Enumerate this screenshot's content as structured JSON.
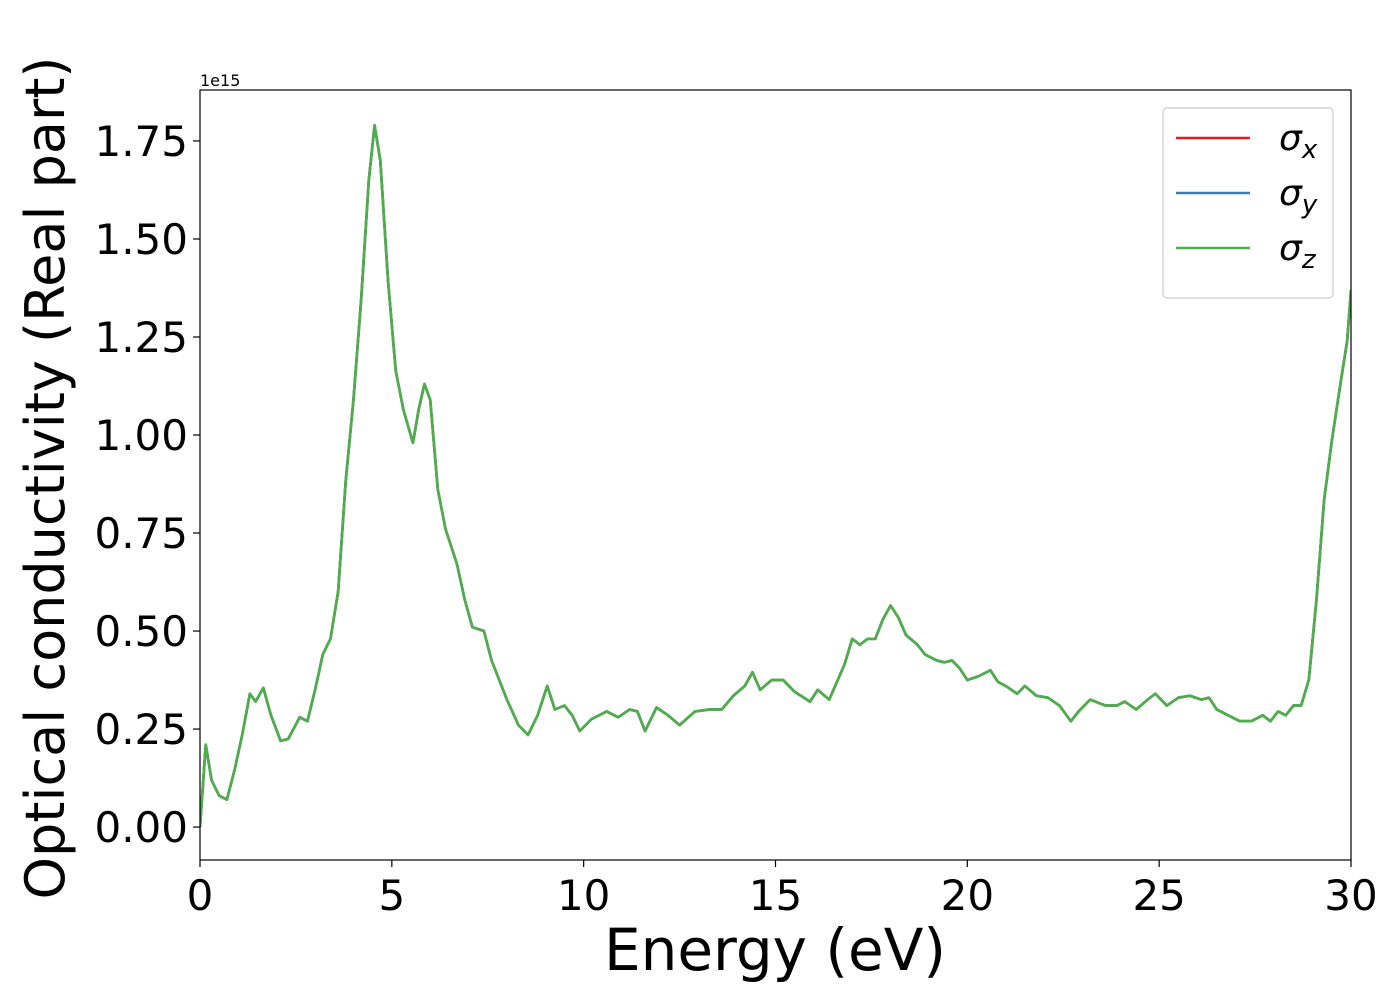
{
  "chart_data": {
    "type": "line",
    "xlabel": "Energy (eV)",
    "ylabel": "Optical conductivity (Real part)",
    "offset_label": "1e15",
    "xlim": [
      0,
      30
    ],
    "xticks": [
      0,
      5,
      10,
      15,
      20,
      25,
      30
    ],
    "ylim": [
      -0.084,
      1.88
    ],
    "yticks": [
      {
        "value": 0,
        "label": "0.00"
      },
      {
        "value": 0.25,
        "label": "0.25"
      },
      {
        "value": 0.5,
        "label": "0.50"
      },
      {
        "value": 0.75,
        "label": "0.75"
      },
      {
        "value": 1,
        "label": "1.00"
      },
      {
        "value": 1.25,
        "label": "1.25"
      },
      {
        "value": 1.5,
        "label": "1.50"
      },
      {
        "value": 1.75,
        "label": "1.75"
      }
    ],
    "legend": "upper right",
    "grid": false,
    "x": [
      0,
      0.15,
      0.3,
      0.5,
      0.7,
      0.9,
      1.1,
      1.3,
      1.45,
      1.65,
      1.85,
      2.1,
      2.3,
      2.6,
      2.8,
      3.0,
      3.2,
      3.4,
      3.6,
      3.8,
      4.0,
      4.2,
      4.4,
      4.55,
      4.7,
      4.9,
      5.1,
      5.3,
      5.55,
      5.7,
      5.85,
      6.0,
      6.2,
      6.4,
      6.7,
      6.9,
      7.1,
      7.4,
      7.6,
      7.8,
      8.0,
      8.3,
      8.55,
      8.8,
      9.05,
      9.25,
      9.5,
      9.7,
      9.9,
      10.2,
      10.6,
      10.9,
      11.2,
      11.4,
      11.6,
      11.9,
      12.2,
      12.5,
      12.9,
      13.3,
      13.6,
      13.9,
      14.2,
      14.4,
      14.6,
      14.9,
      15.2,
      15.5,
      15.9,
      16.1,
      16.4,
      16.6,
      16.8,
      17.0,
      17.2,
      17.4,
      17.6,
      17.8,
      18.0,
      18.2,
      18.4,
      18.7,
      18.9,
      19.2,
      19.4,
      19.6,
      19.8,
      20.0,
      20.3,
      20.6,
      20.8,
      21.0,
      21.3,
      21.5,
      21.8,
      22.1,
      22.4,
      22.7,
      22.9,
      23.2,
      23.6,
      23.9,
      24.1,
      24.4,
      24.7,
      24.9,
      25.2,
      25.5,
      25.8,
      26.1,
      26.3,
      26.5,
      26.8,
      27.1,
      27.4,
      27.7,
      27.9,
      28.1,
      28.3,
      28.5,
      28.7,
      28.9,
      29.1,
      29.3,
      29.5,
      29.7,
      29.9,
      30.0
    ],
    "series": [
      {
        "name": "σx",
        "color": "#e41a1c",
        "values": [
          0,
          0.21,
          0.12,
          0.08,
          0.07,
          0.145,
          0.235,
          0.34,
          0.32,
          0.355,
          0.285,
          0.22,
          0.225,
          0.28,
          0.27,
          0.35,
          0.44,
          0.48,
          0.6,
          0.885,
          1.09,
          1.345,
          1.65,
          1.79,
          1.7,
          1.395,
          1.165,
          1.065,
          0.98,
          1.065,
          1.13,
          1.09,
          0.86,
          0.76,
          0.67,
          0.58,
          0.51,
          0.5,
          0.425,
          0.375,
          0.325,
          0.26,
          0.235,
          0.285,
          0.36,
          0.3,
          0.31,
          0.285,
          0.245,
          0.275,
          0.295,
          0.28,
          0.3,
          0.295,
          0.245,
          0.305,
          0.285,
          0.26,
          0.295,
          0.3,
          0.3,
          0.335,
          0.36,
          0.395,
          0.35,
          0.375,
          0.375,
          0.345,
          0.32,
          0.35,
          0.325,
          0.37,
          0.415,
          0.48,
          0.465,
          0.48,
          0.48,
          0.53,
          0.565,
          0.535,
          0.49,
          0.465,
          0.44,
          0.425,
          0.42,
          0.425,
          0.405,
          0.375,
          0.385,
          0.4,
          0.37,
          0.36,
          0.34,
          0.36,
          0.335,
          0.33,
          0.31,
          0.27,
          0.295,
          0.325,
          0.31,
          0.31,
          0.32,
          0.3,
          0.325,
          0.34,
          0.31,
          0.33,
          0.335,
          0.325,
          0.33,
          0.3,
          0.285,
          0.27,
          0.27,
          0.285,
          0.27,
          0.295,
          0.285,
          0.31,
          0.31,
          0.375,
          0.58,
          0.835,
          0.985,
          1.115,
          1.24,
          1.37
        ]
      },
      {
        "name": "σy",
        "color": "#377eb8",
        "values": [
          0,
          0.21,
          0.12,
          0.08,
          0.07,
          0.145,
          0.235,
          0.34,
          0.32,
          0.355,
          0.285,
          0.22,
          0.225,
          0.28,
          0.27,
          0.35,
          0.44,
          0.48,
          0.6,
          0.885,
          1.09,
          1.345,
          1.65,
          1.79,
          1.7,
          1.395,
          1.165,
          1.065,
          0.98,
          1.065,
          1.13,
          1.09,
          0.86,
          0.76,
          0.67,
          0.58,
          0.51,
          0.5,
          0.425,
          0.375,
          0.325,
          0.26,
          0.235,
          0.285,
          0.36,
          0.3,
          0.31,
          0.285,
          0.245,
          0.275,
          0.295,
          0.28,
          0.3,
          0.295,
          0.245,
          0.305,
          0.285,
          0.26,
          0.295,
          0.3,
          0.3,
          0.335,
          0.36,
          0.395,
          0.35,
          0.375,
          0.375,
          0.345,
          0.32,
          0.35,
          0.325,
          0.37,
          0.415,
          0.48,
          0.465,
          0.48,
          0.48,
          0.53,
          0.565,
          0.535,
          0.49,
          0.465,
          0.44,
          0.425,
          0.42,
          0.425,
          0.405,
          0.375,
          0.385,
          0.4,
          0.37,
          0.36,
          0.34,
          0.36,
          0.335,
          0.33,
          0.31,
          0.27,
          0.295,
          0.325,
          0.31,
          0.31,
          0.32,
          0.3,
          0.325,
          0.34,
          0.31,
          0.33,
          0.335,
          0.325,
          0.33,
          0.3,
          0.285,
          0.27,
          0.27,
          0.285,
          0.27,
          0.295,
          0.285,
          0.31,
          0.31,
          0.375,
          0.58,
          0.835,
          0.985,
          1.115,
          1.24,
          1.37
        ]
      },
      {
        "name": "σz",
        "color": "#4daf4a",
        "values": [
          0,
          0.21,
          0.12,
          0.08,
          0.07,
          0.145,
          0.235,
          0.34,
          0.32,
          0.355,
          0.285,
          0.22,
          0.225,
          0.28,
          0.27,
          0.35,
          0.44,
          0.48,
          0.6,
          0.885,
          1.09,
          1.345,
          1.65,
          1.79,
          1.7,
          1.395,
          1.165,
          1.065,
          0.98,
          1.065,
          1.13,
          1.09,
          0.86,
          0.76,
          0.67,
          0.58,
          0.51,
          0.5,
          0.425,
          0.375,
          0.325,
          0.26,
          0.235,
          0.285,
          0.36,
          0.3,
          0.31,
          0.285,
          0.245,
          0.275,
          0.295,
          0.28,
          0.3,
          0.295,
          0.245,
          0.305,
          0.285,
          0.26,
          0.295,
          0.3,
          0.3,
          0.335,
          0.36,
          0.395,
          0.35,
          0.375,
          0.375,
          0.345,
          0.32,
          0.35,
          0.325,
          0.37,
          0.415,
          0.48,
          0.465,
          0.48,
          0.48,
          0.53,
          0.565,
          0.535,
          0.49,
          0.465,
          0.44,
          0.425,
          0.42,
          0.425,
          0.405,
          0.375,
          0.385,
          0.4,
          0.37,
          0.36,
          0.34,
          0.36,
          0.335,
          0.33,
          0.31,
          0.27,
          0.295,
          0.325,
          0.31,
          0.31,
          0.32,
          0.3,
          0.325,
          0.34,
          0.31,
          0.33,
          0.335,
          0.325,
          0.33,
          0.3,
          0.285,
          0.27,
          0.27,
          0.285,
          0.27,
          0.295,
          0.285,
          0.31,
          0.31,
          0.375,
          0.58,
          0.835,
          0.985,
          1.115,
          1.24,
          1.37
        ]
      }
    ]
  }
}
